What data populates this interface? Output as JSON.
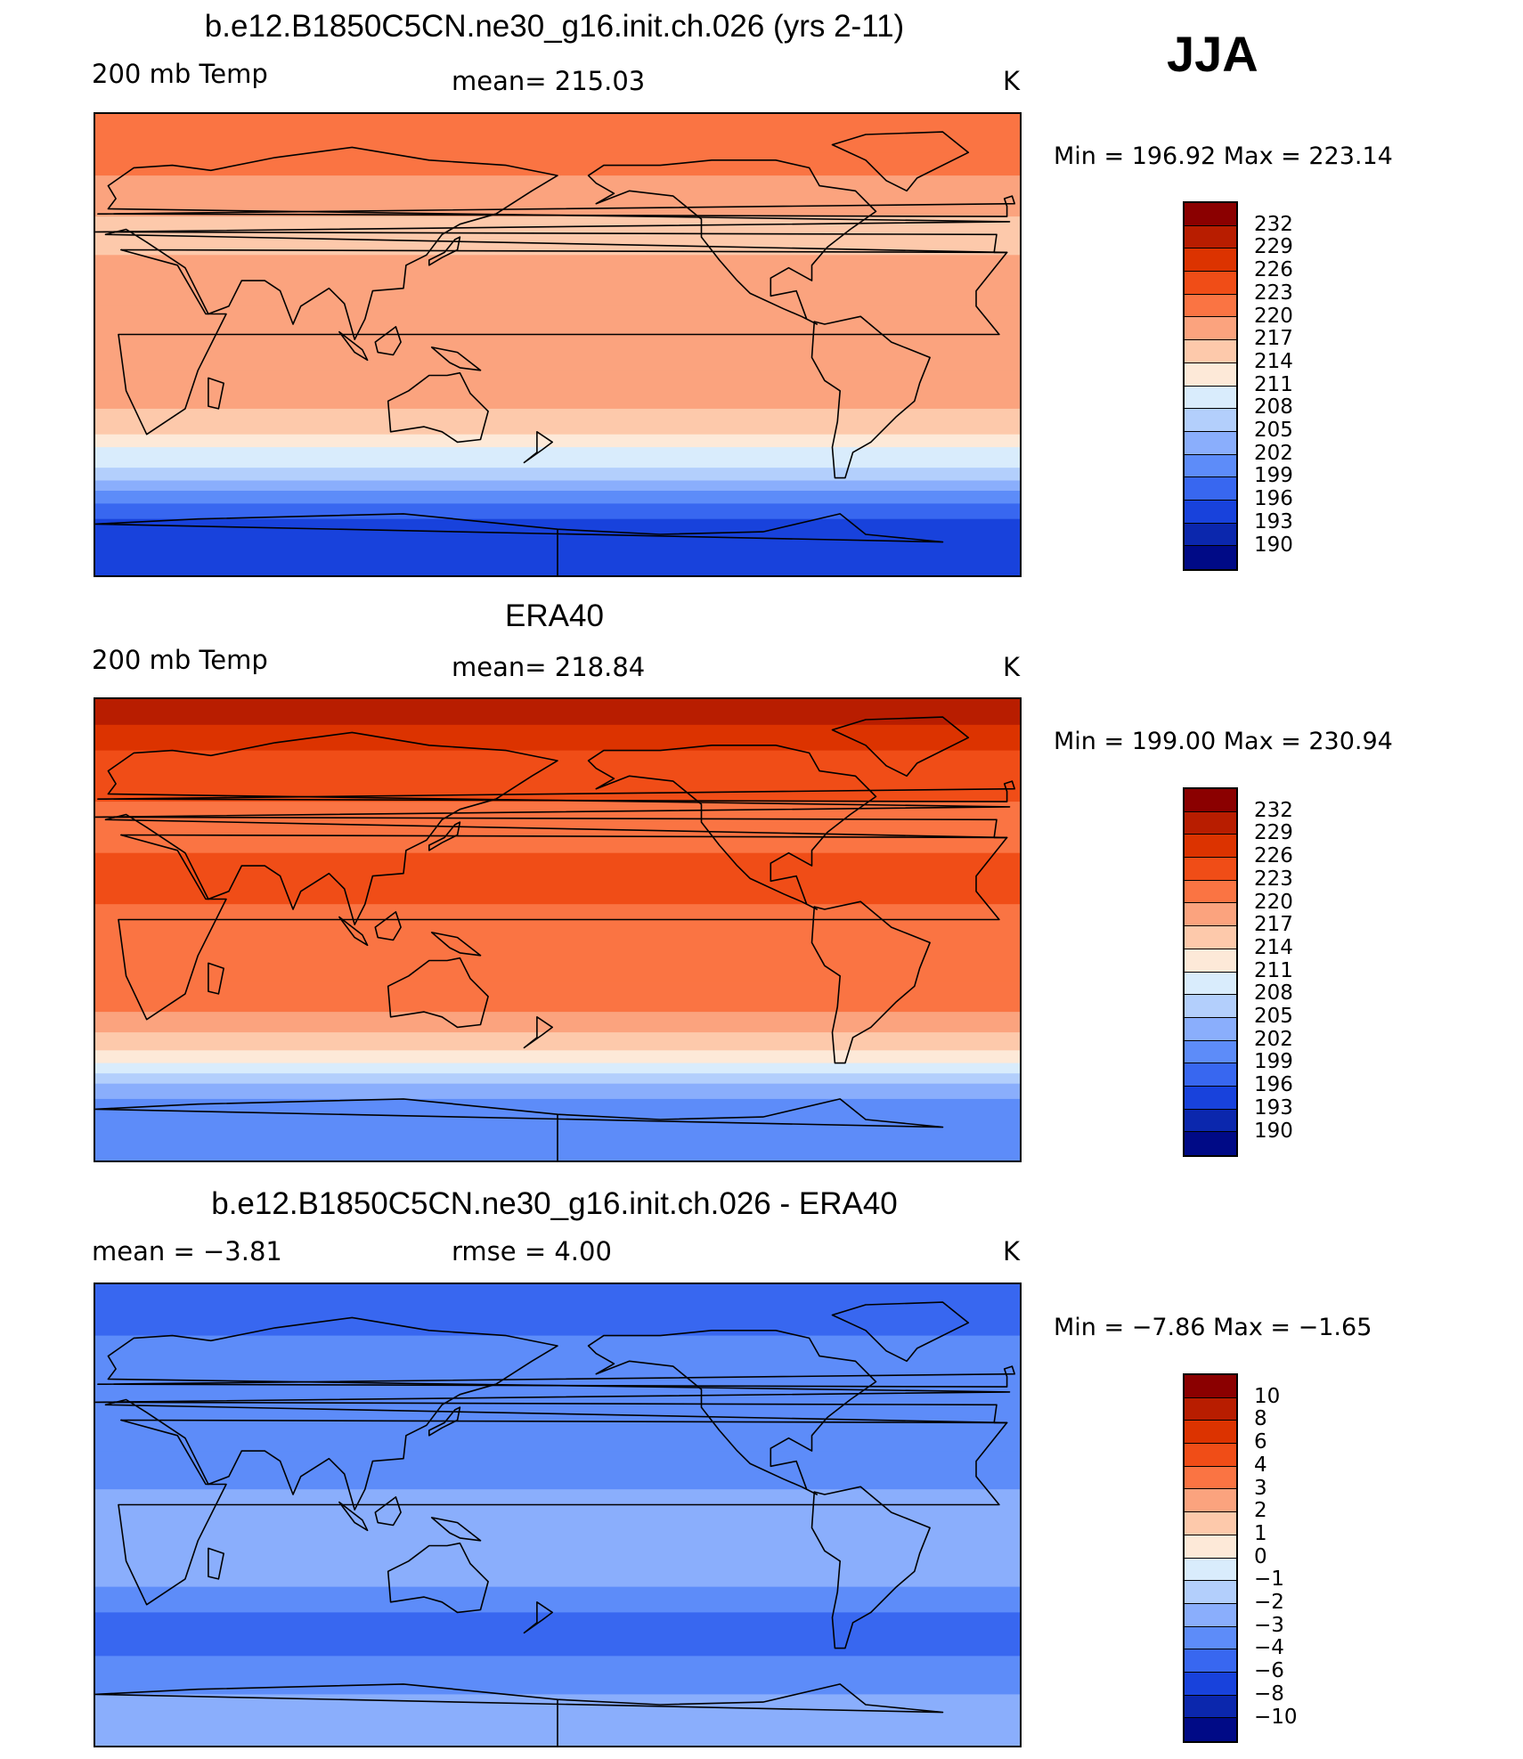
{
  "season": "JJA",
  "chart_data": [
    {
      "type": "heatmap",
      "title": "b.e12.B1850C5CN.ne30_g16.init.ch.026 (yrs 2-11)",
      "variable": "200 mb Temp",
      "stat_text": "mean=  215.03",
      "units": "K",
      "min_max_text": "Min  =  196.92  Max  =  223.14",
      "min": 196.92,
      "max": 223.14,
      "mean": 215.03,
      "levels": [
        "232",
        "229",
        "226",
        "223",
        "220",
        "217",
        "214",
        "211",
        "208",
        "205",
        "202",
        "199",
        "196",
        "193",
        "190"
      ],
      "colors": [
        "#8b0000",
        "#b81d00",
        "#dc3300",
        "#f04d17",
        "#fa7443",
        "#fba37e",
        "#fdc9ab",
        "#fde9d8",
        "#d9ecfc",
        "#b3cffc",
        "#8aaefc",
        "#5d8cf9",
        "#3867f0",
        "#1842dc",
        "#0b27ad",
        "#000a86"
      ],
      "bands": [
        {
          "lat": 90,
          "level": 4
        },
        {
          "lat": 75,
          "level": 4
        },
        {
          "lat": 66,
          "level": 5
        },
        {
          "lat": 50,
          "level": 6
        },
        {
          "lat": 35,
          "level": 5
        },
        {
          "lat": 15,
          "level": 5
        },
        {
          "lat": -10,
          "level": 5
        },
        {
          "lat": -25,
          "level": 6
        },
        {
          "lat": -35,
          "level": 7
        },
        {
          "lat": -40,
          "level": 8
        },
        {
          "lat": -48,
          "level": 9
        },
        {
          "lat": -53,
          "level": 10
        },
        {
          "lat": -57,
          "level": 11
        },
        {
          "lat": -62,
          "level": 12
        },
        {
          "lat": -68,
          "level": 13
        },
        {
          "lat": -90,
          "level": 13
        }
      ]
    },
    {
      "type": "heatmap",
      "title": "ERA40",
      "variable": "200 mb Temp",
      "stat_text": "mean=  218.84",
      "units": "K",
      "min_max_text": "Min  =  199.00  Max  =  230.94",
      "min": 199.0,
      "max": 230.94,
      "mean": 218.84,
      "levels": [
        "232",
        "229",
        "226",
        "223",
        "220",
        "217",
        "214",
        "211",
        "208",
        "205",
        "202",
        "199",
        "196",
        "193",
        "190"
      ],
      "colors": [
        "#8b0000",
        "#b81d00",
        "#dc3300",
        "#f04d17",
        "#fa7443",
        "#fba37e",
        "#fdc9ab",
        "#fde9d8",
        "#d9ecfc",
        "#b3cffc",
        "#8aaefc",
        "#5d8cf9",
        "#3867f0",
        "#1842dc",
        "#0b27ad",
        "#000a86"
      ],
      "bands": [
        {
          "lat": 90,
          "level": 1
        },
        {
          "lat": 80,
          "level": 2
        },
        {
          "lat": 70,
          "level": 3
        },
        {
          "lat": 50,
          "level": 4
        },
        {
          "lat": 30,
          "level": 3
        },
        {
          "lat": 10,
          "level": 4
        },
        {
          "lat": -20,
          "level": 4
        },
        {
          "lat": -32,
          "level": 5
        },
        {
          "lat": -40,
          "level": 6
        },
        {
          "lat": -47,
          "level": 7
        },
        {
          "lat": -52,
          "level": 8
        },
        {
          "lat": -56,
          "level": 9
        },
        {
          "lat": -60,
          "level": 10
        },
        {
          "lat": -66,
          "level": 11
        },
        {
          "lat": -90,
          "level": 12
        }
      ]
    },
    {
      "type": "heatmap",
      "title": "b.e12.B1850C5CN.ne30_g16.init.ch.026 - ERA40",
      "variable": "mean =    −3.81",
      "stat_text": "rmse =     4.00",
      "units": "K",
      "min_max_text": "Min  =    −7.86  Max  =    −1.65",
      "min": -7.86,
      "max": -1.65,
      "mean": -3.81,
      "rmse": 4.0,
      "levels": [
        "10",
        "8",
        "6",
        "4",
        "3",
        "2",
        "1",
        "0",
        "−1",
        "−2",
        "−3",
        "−4",
        "−6",
        "−8",
        "−10"
      ],
      "colors": [
        "#8b0000",
        "#b81d00",
        "#dc3300",
        "#f04d17",
        "#fa7443",
        "#fba37e",
        "#fdc9ab",
        "#fde9d8",
        "#d9ecfc",
        "#b3cffc",
        "#8aaefc",
        "#5d8cf9",
        "#3867f0",
        "#1842dc",
        "#0b27ad",
        "#000a86"
      ],
      "bands": [
        {
          "lat": 90,
          "level": 12
        },
        {
          "lat": 70,
          "level": 11
        },
        {
          "lat": 45,
          "level": 11
        },
        {
          "lat": 25,
          "level": 11
        },
        {
          "lat": 10,
          "level": 10
        },
        {
          "lat": -15,
          "level": 10
        },
        {
          "lat": -28,
          "level": 11
        },
        {
          "lat": -38,
          "level": 12
        },
        {
          "lat": -55,
          "level": 11
        },
        {
          "lat": -70,
          "level": 10
        },
        {
          "lat": -90,
          "level": 10
        }
      ]
    }
  ]
}
